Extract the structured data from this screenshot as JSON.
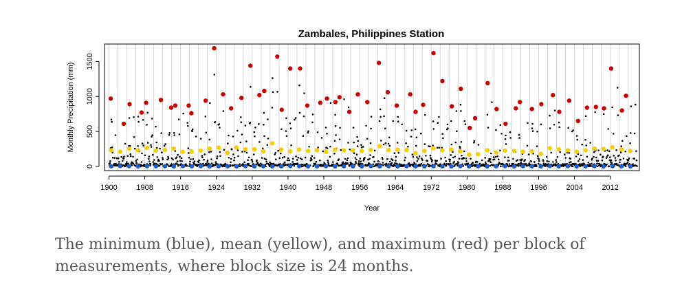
{
  "chart_data": {
    "type": "scatter",
    "title": "Zambales, Philippines Station",
    "xlabel": "Year",
    "ylabel": "Monthly Precipitation (mm)",
    "xlim": [
      1899,
      2018.5
    ],
    "ylim": [
      -60,
      1750
    ],
    "xticks": [
      1900,
      1908,
      1916,
      1924,
      1932,
      1940,
      1948,
      1956,
      1964,
      1972,
      1980,
      1988,
      1996,
      2004,
      2012
    ],
    "yticks": [
      0,
      500,
      1000,
      1500
    ],
    "block_size_months": 24,
    "block_start_years": [
      1900,
      1902,
      1904,
      1906,
      1908,
      1910,
      1912,
      1914,
      1916,
      1918,
      1920,
      1922,
      1924,
      1926,
      1928,
      1930,
      1932,
      1934,
      1936,
      1938,
      1940,
      1942,
      1944,
      1946,
      1948,
      1950,
      1952,
      1954,
      1956,
      1958,
      1960,
      1962,
      1964,
      1966,
      1968,
      1970,
      1972,
      1974,
      1976,
      1978,
      1980,
      1982,
      1984,
      1986,
      1988,
      1990,
      1992,
      1994,
      1996,
      1998,
      2000,
      2002,
      2004,
      2006,
      2008,
      2010,
      2012,
      2014,
      2016
    ],
    "series": [
      {
        "name": "maximum",
        "color": "#cc0000",
        "x": [
          1900.4,
          1903.3,
          1904.6,
          1907.3,
          1908.3,
          1911.6,
          1913.9,
          1914.8,
          1917.8,
          1918.4,
          1921.6,
          1923.5,
          1925.5,
          1927.3,
          1929.6,
          1931.6,
          1933.6,
          1934.7,
          1937.6,
          1938.6,
          1940.5,
          1942.7,
          1944.3,
          1947.2,
          1948.7,
          1950.6,
          1951.5,
          1953.7,
          1955.6,
          1957.7,
          1960.3,
          1962.3,
          1964.3,
          1967.3,
          1968.5,
          1970.2,
          1972.5,
          1974.5,
          1976.6,
          1978.6,
          1980.6,
          1981.8,
          1984.6,
          1986.6,
          1988.6,
          1990.9,
          1991.8,
          1994.5,
          1996.6,
          1999.2,
          2000.6,
          2002.8,
          2004.8,
          2006.8,
          2008.8,
          2010.6,
          2012.2,
          2014.6,
          2015.5
        ],
        "y": [
          970,
          610,
          890,
          770,
          910,
          950,
          840,
          870,
          870,
          760,
          940,
          1690,
          1030,
          830,
          980,
          1440,
          1020,
          1080,
          1570,
          810,
          1400,
          1400,
          870,
          910,
          970,
          920,
          990,
          780,
          1030,
          920,
          1480,
          1060,
          870,
          1030,
          780,
          880,
          1620,
          1220,
          860,
          1110,
          550,
          690,
          1190,
          820,
          610,
          830,
          920,
          820,
          890,
          1020,
          780,
          940,
          650,
          840,
          850,
          830,
          1400,
          800,
          1010
        ]
      },
      {
        "name": "mean",
        "color": "#f5d000",
        "x": [
          1900.5,
          1902.5,
          1904.5,
          1906.5,
          1908.5,
          1910.5,
          1912.5,
          1914.5,
          1916.5,
          1918.5,
          1920.5,
          1922.5,
          1924.5,
          1926.5,
          1928.5,
          1930.5,
          1932.5,
          1934.5,
          1936.5,
          1938.5,
          1940.5,
          1942.5,
          1944.5,
          1946.5,
          1948.5,
          1950.5,
          1952.5,
          1954.5,
          1956.5,
          1958.5,
          1960.5,
          1962.5,
          1964.5,
          1966.5,
          1968.5,
          1970.5,
          1972.5,
          1974.5,
          1976.5,
          1978.5,
          1980.5,
          1982.5,
          1984.5,
          1986.5,
          1988.5,
          1990.5,
          1992.5,
          1994.5,
          1996.5,
          1998.5,
          2000.5,
          2002.5,
          2004.5,
          2006.5,
          2008.5,
          2010.5,
          2012.5,
          2014.5,
          2016.5
        ],
        "y": [
          230,
          210,
          255,
          230,
          265,
          225,
          235,
          255,
          210,
          210,
          225,
          255,
          270,
          195,
          270,
          245,
          245,
          215,
          330,
          240,
          215,
          240,
          220,
          230,
          210,
          240,
          230,
          230,
          220,
          235,
          290,
          235,
          240,
          235,
          190,
          220,
          260,
          230,
          240,
          215,
          170,
          175,
          230,
          200,
          225,
          220,
          210,
          215,
          180,
          260,
          245,
          230,
          210,
          230,
          255,
          250,
          275,
          240,
          220
        ]
      },
      {
        "name": "minimum",
        "color": "#1a5fd6",
        "x": [
          1900.5,
          1902.5,
          1904.5,
          1906.5,
          1908.5,
          1910.5,
          1912.5,
          1914.5,
          1916.5,
          1918.5,
          1920.5,
          1922.5,
          1924.5,
          1926.5,
          1928.5,
          1930.5,
          1932.5,
          1934.5,
          1936.5,
          1938.5,
          1940.5,
          1942.5,
          1944.5,
          1946.5,
          1948.5,
          1950.5,
          1952.5,
          1954.5,
          1956.5,
          1958.5,
          1960.5,
          1962.5,
          1964.5,
          1966.5,
          1968.5,
          1970.5,
          1972.5,
          1974.5,
          1976.5,
          1978.5,
          1980.5,
          1982.5,
          1984.5,
          1986.5,
          1988.5,
          1990.5,
          1992.5,
          1994.5,
          1996.5,
          1998.5,
          2000.5,
          2002.5,
          2004.5,
          2006.5,
          2008.5,
          2010.5,
          2012.5,
          2014.5,
          2016.5
        ],
        "y": [
          2,
          5,
          3,
          1,
          4,
          2,
          3,
          1,
          5,
          2,
          4,
          1,
          3,
          2,
          1,
          4,
          2,
          3,
          1,
          2,
          5,
          3,
          1,
          2,
          4,
          1,
          3,
          2,
          1,
          5,
          2,
          3,
          1,
          4,
          2,
          1,
          3,
          2,
          1,
          4,
          2,
          3,
          1,
          2,
          4,
          1,
          3,
          2,
          1,
          5,
          2,
          3,
          1,
          2,
          4,
          1,
          3,
          2,
          1
        ]
      }
    ]
  },
  "caption": {
    "line1": "The minimum (blue), mean (yellow), and maximum (red) per block of",
    "line2": "measurements, where block size is 24 months."
  }
}
